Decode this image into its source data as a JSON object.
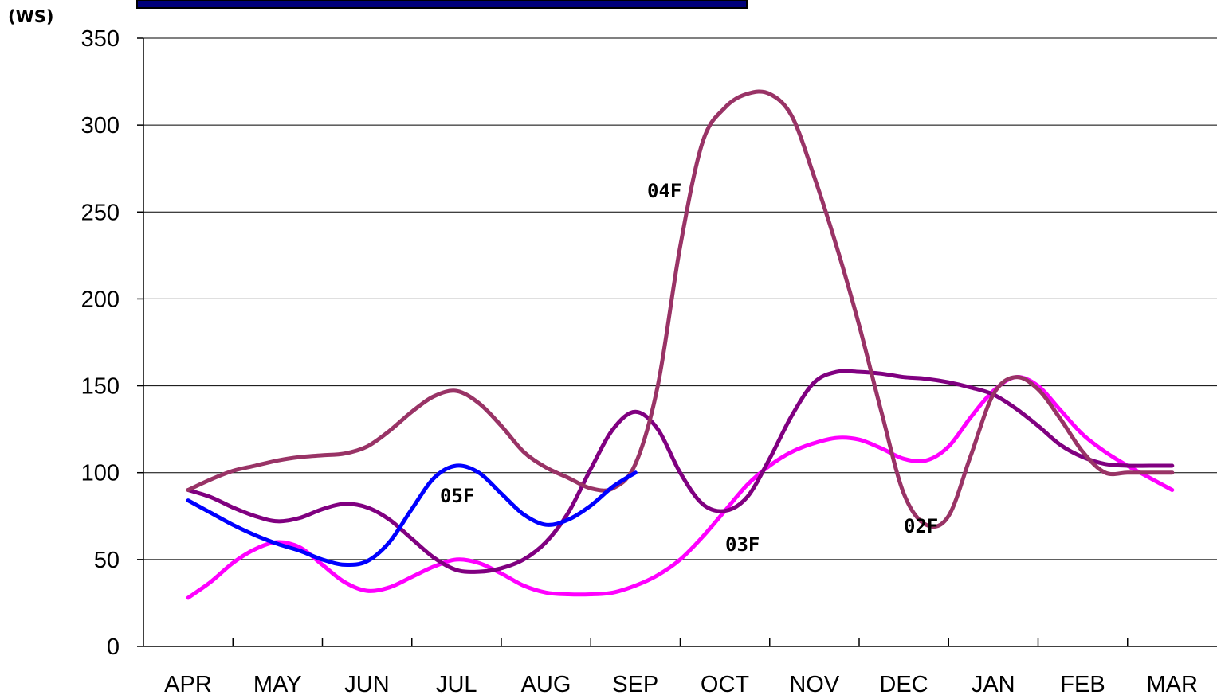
{
  "chart_data": {
    "type": "line",
    "title": "",
    "xlabel": "",
    "ylabel": "(WS)",
    "categories": [
      "APR",
      "MAY",
      "JUN",
      "JUL",
      "AUG",
      "SEP",
      "OCT",
      "NOV",
      "DEC",
      "JAN",
      "FEB",
      "MAR"
    ],
    "yticks": [
      "0",
      "50",
      "100",
      "150",
      "200",
      "250",
      "300",
      "350"
    ],
    "ylim": [
      0,
      350
    ],
    "grid": true,
    "legend": "none",
    "series": [
      {
        "name": "02F",
        "color": "#ff00ff",
        "x": [
          0,
          0.25,
          0.5,
          0.75,
          1,
          1.25,
          1.5,
          1.75,
          2,
          2.25,
          2.5,
          2.75,
          3,
          3.25,
          3.5,
          3.75,
          4,
          4.25,
          4.5,
          4.75,
          5,
          5.25,
          5.5,
          5.75,
          6,
          6.25,
          6.5,
          6.75,
          7,
          7.25,
          7.5,
          7.75,
          8,
          8.25,
          8.5,
          8.75,
          9,
          9.25,
          9.5,
          9.75,
          10,
          10.25,
          10.5,
          10.75,
          11
        ],
        "values": [
          28,
          37,
          48,
          56,
          60,
          57,
          47,
          37,
          32,
          34,
          40,
          46,
          50,
          48,
          42,
          35,
          31,
          30,
          30,
          31,
          35,
          41,
          50,
          63,
          78,
          93,
          104,
          112,
          117,
          120,
          119,
          114,
          108,
          107,
          115,
          132,
          147,
          155,
          150,
          136,
          122,
          112,
          104,
          97,
          90
        ]
      },
      {
        "name": "03F",
        "color": "#800080",
        "x": [
          0,
          0.25,
          0.5,
          0.75,
          1,
          1.25,
          1.5,
          1.75,
          2,
          2.25,
          2.5,
          2.75,
          3,
          3.25,
          3.5,
          3.75,
          4,
          4.25,
          4.5,
          4.75,
          5,
          5.25,
          5.5,
          5.75,
          6,
          6.25,
          6.5,
          6.75,
          7,
          7.25,
          7.5,
          7.75,
          8,
          8.25,
          8.5,
          8.75,
          9,
          9.25,
          9.5,
          9.75,
          10,
          10.25,
          10.5,
          10.75,
          11
        ],
        "values": [
          90,
          86,
          80,
          75,
          72,
          74,
          79,
          82,
          80,
          73,
          62,
          51,
          44,
          43,
          45,
          50,
          60,
          77,
          102,
          125,
          135,
          125,
          100,
          82,
          78,
          86,
          108,
          133,
          152,
          158,
          158,
          157,
          155,
          154,
          152,
          149,
          145,
          137,
          127,
          116,
          109,
          105,
          104,
          104,
          104
        ]
      },
      {
        "name": "04F",
        "color": "#993366",
        "x": [
          0,
          0.25,
          0.5,
          0.75,
          1,
          1.25,
          1.5,
          1.75,
          2,
          2.25,
          2.5,
          2.75,
          3,
          3.25,
          3.5,
          3.75,
          4,
          4.25,
          4.5,
          4.75,
          5,
          5.25,
          5.5,
          5.75,
          6,
          6.25,
          6.5,
          6.75,
          7,
          7.25,
          7.5,
          7.75,
          8,
          8.25,
          8.5,
          8.75,
          9,
          9.25,
          9.5,
          9.75,
          10,
          10.25,
          10.5,
          10.75,
          11
        ],
        "values": [
          90,
          96,
          101,
          104,
          107,
          109,
          110,
          111,
          115,
          124,
          135,
          144,
          147,
          140,
          127,
          112,
          103,
          97,
          91,
          91,
          105,
          150,
          230,
          290,
          310,
          318,
          318,
          305,
          270,
          230,
          185,
          135,
          88,
          70,
          75,
          110,
          145,
          155,
          148,
          131,
          112,
          100,
          100,
          100,
          100
        ]
      },
      {
        "name": "05F",
        "color": "#0000ff",
        "x": [
          0,
          0.25,
          0.5,
          0.75,
          1,
          1.25,
          1.5,
          1.75,
          2,
          2.25,
          2.5,
          2.75,
          3,
          3.25,
          3.5,
          3.75,
          4,
          4.25,
          4.5,
          4.75,
          5
        ],
        "values": [
          84,
          77,
          70,
          64,
          59,
          55,
          50,
          47,
          49,
          60,
          79,
          97,
          104,
          100,
          88,
          76,
          70,
          73,
          81,
          92,
          100
        ]
      }
    ],
    "annotations": [
      "04F",
      "05F",
      "03F",
      "02F"
    ]
  }
}
